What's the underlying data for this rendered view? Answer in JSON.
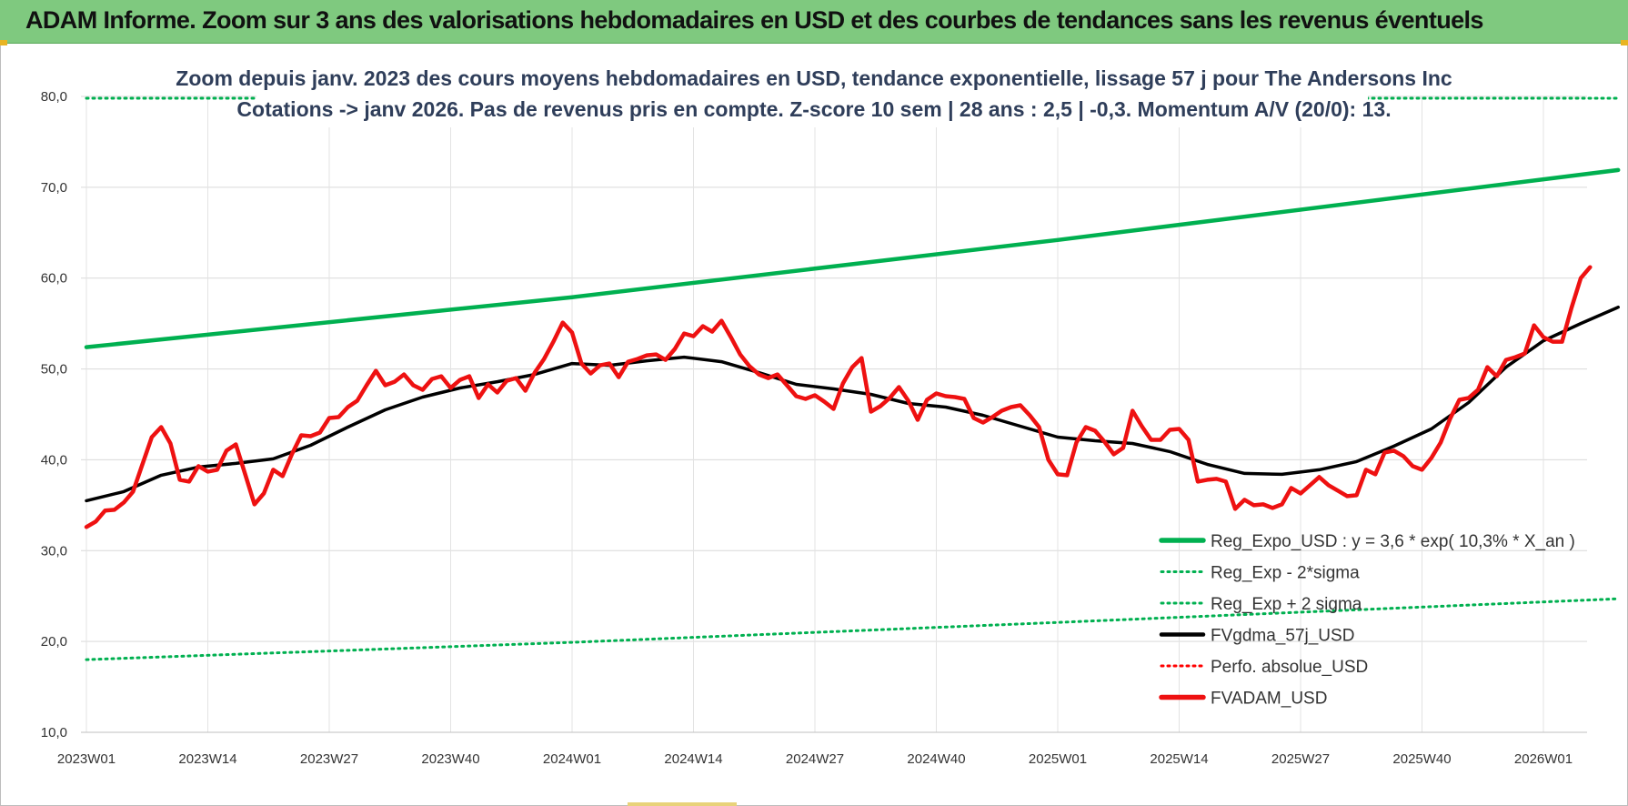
{
  "header": {
    "title": "ADAM Informe. Zoom sur 3 ans des valorisations hebdomadaires en USD et des courbes de tendances sans les revenus éventuels"
  },
  "chart_data": {
    "type": "line",
    "subtitle": [
      "Zoom depuis janv. 2023 des cours moyens hebdomadaires en USD, tendance exponentielle, lissage 57 j pour The Andersons Inc",
      "Cotations -> janv 2026. Pas de revenus pris en compte. Z-score 10 sem | 28 ans : 2,5 | -0,3. Momentum A/V (20/0): 13."
    ],
    "ylim": [
      10,
      80
    ],
    "y_ticks": [
      "10,0",
      "20,0",
      "30,0",
      "40,0",
      "50,0",
      "60,0",
      "70,0",
      "80,0"
    ],
    "x_tick_labels": [
      "2023W01",
      "2023W14",
      "2023W27",
      "2023W40",
      "2024W01",
      "2024W14",
      "2024W27",
      "2024W40",
      "2025W01",
      "2025W14",
      "2025W27",
      "2025W40",
      "2026W01"
    ],
    "x_tick_index": [
      0,
      13,
      26,
      39,
      52,
      65,
      78,
      91,
      104,
      117,
      130,
      143,
      156
    ],
    "grid": true,
    "legend_position": "bottom-right",
    "series": [
      {
        "name": "Reg_Expo_USD : y = 3,6 * exp( 10,3% *  X_an )",
        "color": "#00b050",
        "style": "solid-thick",
        "points": [
          [
            0,
            52.4
          ],
          [
            52,
            57.9
          ],
          [
            104,
            64.2
          ],
          [
            164,
            71.9
          ]
        ]
      },
      {
        "name": "Reg_Exp - 2*sigma",
        "color": "#00b050",
        "style": "dotted",
        "points": [
          [
            0,
            18.0
          ],
          [
            52,
            19.9
          ],
          [
            104,
            22.1
          ],
          [
            164,
            24.7
          ]
        ]
      },
      {
        "name": "Reg_Exp + 2 sigma",
        "color": "#00b050",
        "style": "dotted",
        "points": [
          [
            0,
            79.8
          ],
          [
            164,
            79.8
          ]
        ]
      },
      {
        "name": "FVgdma_57j_USD",
        "color": "#000000",
        "style": "solid",
        "points": [
          [
            0,
            35.5
          ],
          [
            4,
            36.5
          ],
          [
            8,
            38.3
          ],
          [
            12,
            39.2
          ],
          [
            16,
            39.6
          ],
          [
            20,
            40.1
          ],
          [
            24,
            41.6
          ],
          [
            28,
            43.6
          ],
          [
            32,
            45.5
          ],
          [
            36,
            46.9
          ],
          [
            40,
            47.9
          ],
          [
            44,
            48.6
          ],
          [
            48,
            49.4
          ],
          [
            52,
            50.6
          ],
          [
            56,
            50.4
          ],
          [
            60,
            50.9
          ],
          [
            64,
            51.3
          ],
          [
            68,
            50.8
          ],
          [
            72,
            49.6
          ],
          [
            76,
            48.3
          ],
          [
            80,
            47.8
          ],
          [
            84,
            47.2
          ],
          [
            88,
            46.2
          ],
          [
            92,
            45.8
          ],
          [
            96,
            44.9
          ],
          [
            100,
            43.7
          ],
          [
            104,
            42.5
          ],
          [
            108,
            42.1
          ],
          [
            112,
            41.8
          ],
          [
            116,
            40.9
          ],
          [
            120,
            39.5
          ],
          [
            124,
            38.5
          ],
          [
            128,
            38.4
          ],
          [
            132,
            38.9
          ],
          [
            136,
            39.8
          ],
          [
            140,
            41.5
          ],
          [
            144,
            43.4
          ],
          [
            148,
            46.3
          ],
          [
            152,
            50.2
          ],
          [
            156,
            53.1
          ],
          [
            160,
            55.0
          ],
          [
            164,
            56.8
          ]
        ]
      },
      {
        "name": "Perfo. absolue_USD",
        "color": "#ff0000",
        "style": "dotted",
        "points": []
      },
      {
        "name": "FVADAM_USD",
        "color": "#ee1111",
        "style": "solid-thick",
        "points": [
          [
            0,
            32.6
          ],
          [
            1,
            33.2
          ],
          [
            2,
            34.4
          ],
          [
            3,
            34.5
          ],
          [
            4,
            35.3
          ],
          [
            5,
            36.5
          ],
          [
            6,
            39.5
          ],
          [
            7,
            42.5
          ],
          [
            8,
            43.6
          ],
          [
            9,
            41.8
          ],
          [
            10,
            37.8
          ],
          [
            11,
            37.6
          ],
          [
            12,
            39.3
          ],
          [
            13,
            38.7
          ],
          [
            14,
            38.9
          ],
          [
            15,
            41.0
          ],
          [
            16,
            41.7
          ],
          [
            17,
            38.4
          ],
          [
            18,
            35.1
          ],
          [
            19,
            36.3
          ],
          [
            20,
            38.9
          ],
          [
            21,
            38.2
          ],
          [
            22,
            40.6
          ],
          [
            23,
            42.7
          ],
          [
            24,
            42.6
          ],
          [
            25,
            43.0
          ],
          [
            26,
            44.6
          ],
          [
            27,
            44.7
          ],
          [
            28,
            45.8
          ],
          [
            29,
            46.5
          ],
          [
            30,
            48.2
          ],
          [
            31,
            49.8
          ],
          [
            32,
            48.2
          ],
          [
            33,
            48.6
          ],
          [
            34,
            49.4
          ],
          [
            35,
            48.2
          ],
          [
            36,
            47.7
          ],
          [
            37,
            48.9
          ],
          [
            38,
            49.2
          ],
          [
            39,
            47.9
          ],
          [
            40,
            48.8
          ],
          [
            41,
            49.2
          ],
          [
            42,
            46.8
          ],
          [
            43,
            48.3
          ],
          [
            44,
            47.4
          ],
          [
            45,
            48.7
          ],
          [
            46,
            49.0
          ],
          [
            47,
            47.6
          ],
          [
            48,
            49.6
          ],
          [
            49,
            51.1
          ],
          [
            50,
            53.0
          ],
          [
            51,
            55.1
          ],
          [
            52,
            54.0
          ],
          [
            53,
            50.6
          ],
          [
            54,
            49.5
          ],
          [
            55,
            50.4
          ],
          [
            56,
            50.6
          ],
          [
            57,
            49.1
          ],
          [
            58,
            50.8
          ],
          [
            59,
            51.1
          ],
          [
            60,
            51.5
          ],
          [
            61,
            51.6
          ],
          [
            62,
            51.0
          ],
          [
            63,
            52.2
          ],
          [
            64,
            53.9
          ],
          [
            65,
            53.6
          ],
          [
            66,
            54.7
          ],
          [
            67,
            54.1
          ],
          [
            68,
            55.3
          ],
          [
            69,
            53.5
          ],
          [
            70,
            51.6
          ],
          [
            71,
            50.3
          ],
          [
            72,
            49.4
          ],
          [
            73,
            49.0
          ],
          [
            74,
            49.4
          ],
          [
            75,
            48.2
          ],
          [
            76,
            47.0
          ],
          [
            77,
            46.7
          ],
          [
            78,
            47.1
          ],
          [
            79,
            46.4
          ],
          [
            80,
            45.6
          ],
          [
            81,
            48.4
          ],
          [
            82,
            50.2
          ],
          [
            83,
            51.2
          ],
          [
            84,
            45.3
          ],
          [
            85,
            45.9
          ],
          [
            86,
            46.8
          ],
          [
            87,
            48.0
          ],
          [
            88,
            46.5
          ],
          [
            89,
            44.4
          ],
          [
            90,
            46.6
          ],
          [
            91,
            47.3
          ],
          [
            92,
            47.0
          ],
          [
            93,
            46.9
          ],
          [
            94,
            46.7
          ],
          [
            95,
            44.6
          ],
          [
            96,
            44.1
          ],
          [
            97,
            44.7
          ],
          [
            98,
            45.4
          ],
          [
            99,
            45.8
          ],
          [
            100,
            46.0
          ],
          [
            101,
            44.9
          ],
          [
            102,
            43.6
          ],
          [
            103,
            40.0
          ],
          [
            104,
            38.4
          ],
          [
            105,
            38.3
          ],
          [
            106,
            41.9
          ],
          [
            107,
            43.6
          ],
          [
            108,
            43.2
          ],
          [
            109,
            42.0
          ],
          [
            110,
            40.6
          ],
          [
            111,
            41.3
          ],
          [
            112,
            45.4
          ],
          [
            113,
            43.7
          ],
          [
            114,
            42.2
          ],
          [
            115,
            42.2
          ],
          [
            116,
            43.3
          ],
          [
            117,
            43.4
          ],
          [
            118,
            42.2
          ],
          [
            119,
            37.6
          ],
          [
            120,
            37.8
          ],
          [
            121,
            37.9
          ],
          [
            122,
            37.6
          ],
          [
            123,
            34.6
          ],
          [
            124,
            35.6
          ],
          [
            125,
            35.0
          ],
          [
            126,
            35.1
          ],
          [
            127,
            34.7
          ],
          [
            128,
            35.1
          ],
          [
            129,
            36.9
          ],
          [
            130,
            36.3
          ],
          [
            131,
            37.2
          ],
          [
            132,
            38.1
          ],
          [
            133,
            37.2
          ],
          [
            134,
            36.6
          ],
          [
            135,
            36.0
          ],
          [
            136,
            36.1
          ],
          [
            137,
            38.9
          ],
          [
            138,
            38.4
          ],
          [
            139,
            40.8
          ],
          [
            140,
            41.0
          ],
          [
            141,
            40.4
          ],
          [
            142,
            39.3
          ],
          [
            143,
            38.9
          ],
          [
            144,
            40.2
          ],
          [
            145,
            41.9
          ],
          [
            146,
            44.5
          ],
          [
            147,
            46.6
          ],
          [
            148,
            46.8
          ],
          [
            149,
            47.7
          ],
          [
            150,
            50.2
          ],
          [
            151,
            49.2
          ],
          [
            152,
            51.0
          ],
          [
            153,
            51.3
          ],
          [
            154,
            51.7
          ],
          [
            155,
            54.8
          ],
          [
            156,
            53.5
          ],
          [
            157,
            53.0
          ],
          [
            158,
            53.0
          ],
          [
            159,
            56.7
          ],
          [
            160,
            60.0
          ],
          [
            161,
            61.2
          ]
        ]
      }
    ]
  }
}
